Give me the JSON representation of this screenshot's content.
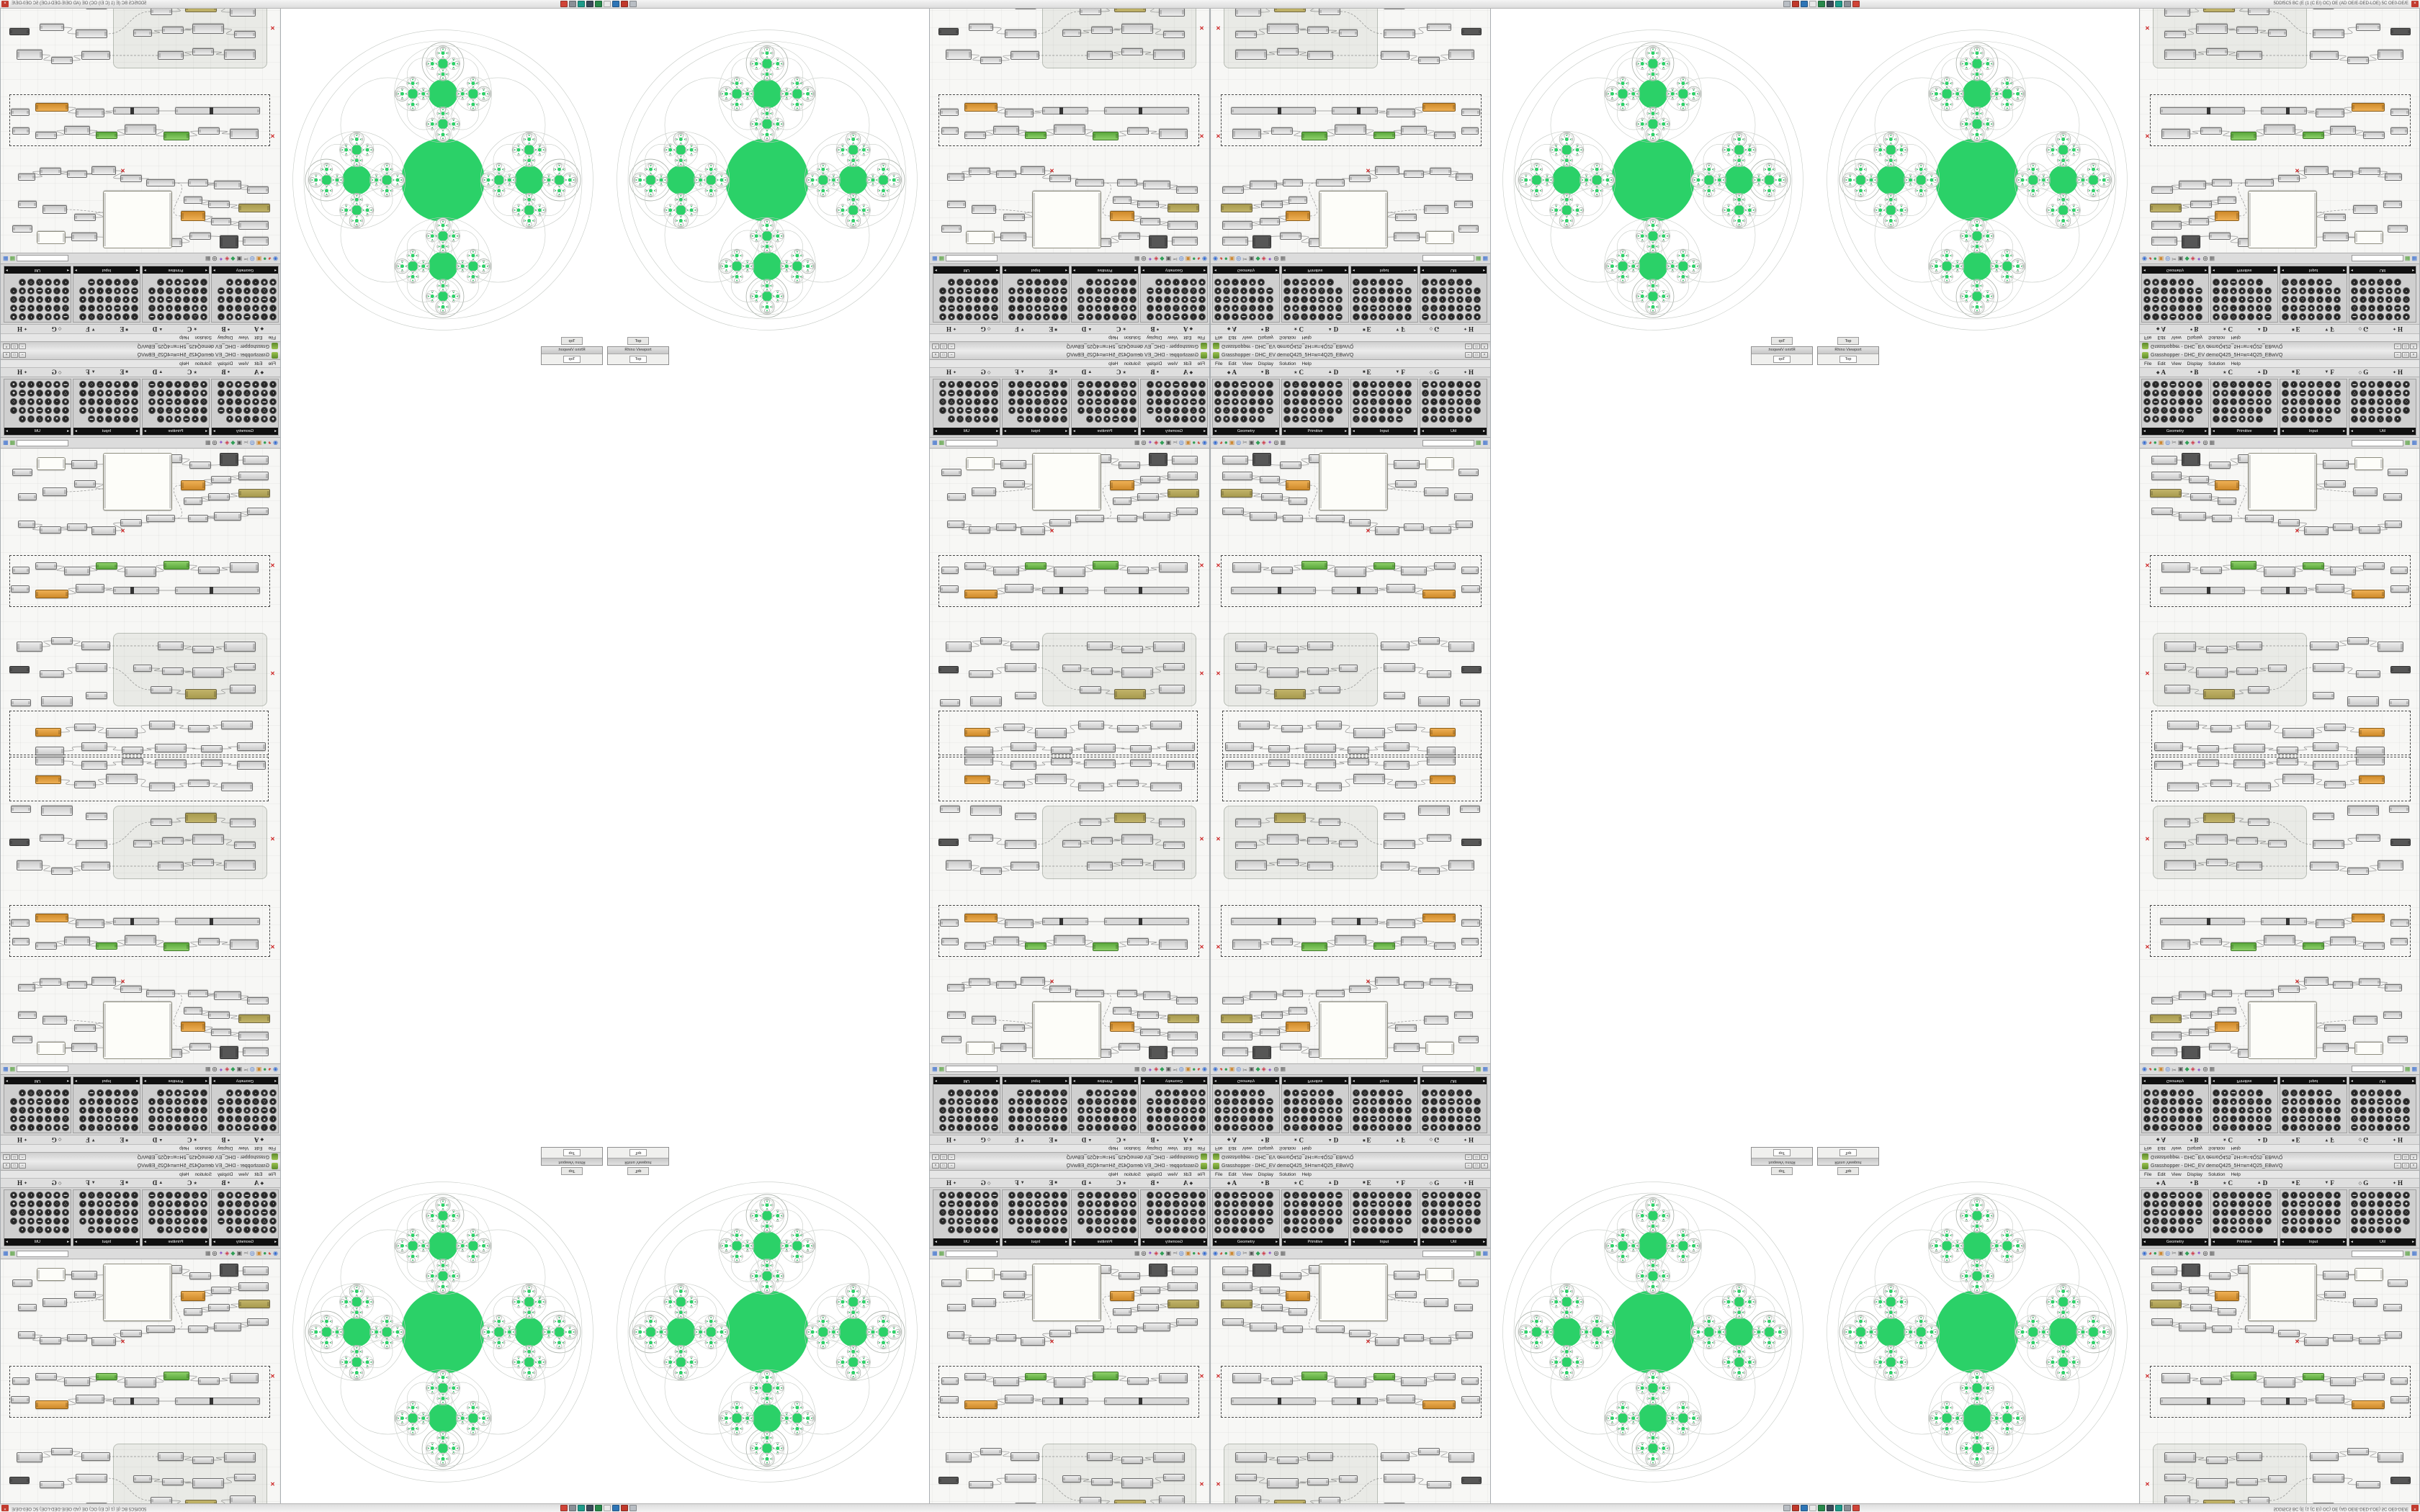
{
  "app": {
    "title_text": "5DDf5C5 BC (E (1 (C E/) OC) OE (AD OE/E-DED-LOE) 5C OE0-DE/E",
    "close_glyph": "×",
    "strip_icons": [
      {
        "name": "rhino-app-icon",
        "color": "#b9bec4"
      },
      {
        "name": "panel-red-icon",
        "color": "#c0392b"
      },
      {
        "name": "panel-blue-icon",
        "color": "#2e75b6"
      },
      {
        "name": "panel-white-icon",
        "color": "#e8e8e8"
      },
      {
        "name": "panel-green-icon",
        "color": "#27884a"
      },
      {
        "name": "panel-navy-icon",
        "color": "#3b4a5a"
      },
      {
        "name": "panel-teal-icon",
        "color": "#1e9b8a"
      },
      {
        "name": "panel-gray-icon",
        "color": "#8a9097"
      },
      {
        "name": "panel-red2-icon",
        "color": "#d04438"
      }
    ]
  },
  "editor": {
    "window_title": "Grasshopper - DHC_EV demoQ425_5H=w=4Q25_EBwVQ",
    "window_buttons": [
      "−",
      "□",
      "×"
    ],
    "menu": [
      "File",
      "Edit",
      "View",
      "Display",
      "Solution",
      "Help"
    ],
    "letter_tabs": [
      {
        "icon": "◆",
        "letter": "A"
      },
      {
        "icon": "●",
        "letter": "B"
      },
      {
        "icon": "★",
        "letter": "C"
      },
      {
        "icon": "▲",
        "letter": "D"
      },
      {
        "icon": "■",
        "letter": "E"
      },
      {
        "icon": "▼",
        "letter": "F"
      },
      {
        "icon": "◇",
        "letter": "G"
      },
      {
        "icon": "✦",
        "letter": "H"
      }
    ],
    "icon_glyphs": [
      "●",
      "◐",
      "▲",
      "■",
      "◆",
      "◇",
      "▪",
      "○",
      "✖",
      "▬",
      "△",
      "◉"
    ],
    "ribbon_panels": [
      {
        "caption": "Geometry",
        "icon_count": 34
      },
      {
        "caption": "Primitive",
        "icon_count": 34
      },
      {
        "caption": "Input",
        "icon_count": 34
      },
      {
        "caption": "Util",
        "icon_count": 34
      }
    ],
    "toolbar": {
      "search_placeholder": "",
      "left_icons": [
        {
          "name": "compass-icon",
          "glyph": "◉",
          "color": "#3a6fd0"
        },
        {
          "name": "pie-icon",
          "glyph": "◕",
          "color": "#cc4433"
        },
        {
          "name": "sphere-icon",
          "glyph": "●",
          "color": "#2f9e55"
        },
        {
          "name": "box-icon",
          "glyph": "▣",
          "color": "#cc8833"
        },
        {
          "name": "eye-icon",
          "glyph": "◎",
          "color": "#3a6fd0"
        },
        {
          "name": "scissors-icon",
          "glyph": "✂",
          "color": "#777777"
        },
        {
          "name": "camera-icon",
          "glyph": "▣",
          "color": "#555555"
        },
        {
          "name": "bucket-icon",
          "glyph": "◆",
          "color": "#2f9e55"
        },
        {
          "name": "magnet-icon",
          "glyph": "◈",
          "color": "#cc3344"
        },
        {
          "name": "wand-icon",
          "glyph": "✦",
          "color": "#8a55cc"
        },
        {
          "name": "target-icon",
          "glyph": "◎",
          "color": "#222222"
        },
        {
          "name": "chip-icon",
          "glyph": "▦",
          "color": "#666666"
        }
      ],
      "right_icons": [
        {
          "name": "grid-green-icon",
          "glyph": "▦",
          "color": "#57a33e"
        },
        {
          "name": "grid-blue-icon",
          "glyph": "▦",
          "color": "#3a6fd0"
        }
      ]
    },
    "canvas": {
      "groups": [
        [
          18,
          256,
          212,
          100
        ]
      ],
      "marquees": [
        [
          14,
          148,
          362,
          72
        ],
        [
          16,
          364,
          360,
          62
        ]
      ],
      "nodes": [
        [
          16,
          10,
          36,
          12,
          0
        ],
        [
          58,
          6,
          26,
          18,
          1
        ],
        [
          96,
          18,
          30,
          10,
          0
        ],
        [
          136,
          8,
          34,
          12,
          0
        ],
        [
          150,
          6,
          96,
          80,
          4
        ],
        [
          254,
          16,
          36,
          12,
          0
        ],
        [
          298,
          12,
          40,
          18,
          4
        ],
        [
          344,
          28,
          28,
          10,
          0
        ],
        [
          16,
          32,
          42,
          12,
          0
        ],
        [
          68,
          38,
          28,
          10,
          0
        ],
        [
          104,
          44,
          34,
          14,
          2
        ],
        [
          256,
          44,
          30,
          10,
          0
        ],
        [
          296,
          54,
          34,
          12,
          0
        ],
        [
          338,
          62,
          26,
          10,
          0
        ],
        [
          14,
          56,
          44,
          12,
          3
        ],
        [
          70,
          62,
          30,
          10,
          0
        ],
        [
          108,
          68,
          26,
          10,
          0
        ],
        [
          16,
          82,
          30,
          10,
          0
        ],
        [
          54,
          88,
          38,
          12,
          0
        ],
        [
          100,
          92,
          28,
          10,
          0
        ],
        [
          146,
          92,
          40,
          10,
          0
        ],
        [
          192,
          98,
          30,
          10,
          0
        ],
        [
          228,
          108,
          34,
          12,
          0
        ],
        [
          268,
          104,
          28,
          10,
          0
        ],
        [
          304,
          108,
          30,
          10,
          0
        ],
        [
          340,
          100,
          24,
          10,
          0
        ],
        [
          30,
          158,
          40,
          14,
          0
        ],
        [
          84,
          164,
          30,
          10,
          0
        ],
        [
          126,
          156,
          36,
          12,
          6
        ],
        [
          172,
          164,
          44,
          14,
          0
        ],
        [
          226,
          158,
          30,
          10,
          6
        ],
        [
          264,
          164,
          36,
          12,
          0
        ],
        [
          310,
          158,
          30,
          10,
          0
        ],
        [
          348,
          164,
          24,
          10,
          0
        ],
        [
          28,
          192,
          118,
          10,
          5
        ],
        [
          168,
          192,
          64,
          10,
          5
        ],
        [
          244,
          188,
          40,
          12,
          0
        ],
        [
          294,
          196,
          46,
          12,
          2
        ],
        [
          348,
          190,
          26,
          10,
          0
        ],
        [
          34,
          268,
          44,
          14,
          0
        ],
        [
          92,
          274,
          30,
          10,
          0
        ],
        [
          134,
          268,
          36,
          12,
          0
        ],
        [
          34,
          298,
          30,
          10,
          0
        ],
        [
          78,
          304,
          44,
          14,
          0
        ],
        [
          134,
          304,
          30,
          10,
          0
        ],
        [
          178,
          300,
          26,
          10,
          0
        ],
        [
          34,
          328,
          36,
          12,
          0
        ],
        [
          88,
          334,
          44,
          14,
          3
        ],
        [
          150,
          330,
          30,
          10,
          0
        ],
        [
          236,
          268,
          40,
          12,
          0
        ],
        [
          288,
          262,
          30,
          10,
          0
        ],
        [
          330,
          268,
          36,
          14,
          0
        ],
        [
          240,
          298,
          44,
          12,
          0
        ],
        [
          300,
          308,
          34,
          10,
          0
        ],
        [
          348,
          302,
          28,
          10,
          1
        ],
        [
          240,
          338,
          30,
          10,
          0
        ],
        [
          288,
          344,
          44,
          14,
          0
        ],
        [
          346,
          348,
          28,
          10,
          0
        ],
        [
          38,
          378,
          44,
          12,
          0
        ],
        [
          98,
          384,
          30,
          10,
          0
        ],
        [
          146,
          378,
          36,
          12,
          0
        ],
        [
          198,
          388,
          44,
          14,
          0
        ],
        [
          256,
          382,
          30,
          10,
          0
        ],
        [
          304,
          388,
          36,
          12,
          2
        ],
        [
          20,
          408,
          40,
          12,
          0
        ],
        [
          80,
          412,
          30,
          10,
          0
        ],
        [
          130,
          410,
          44,
          12,
          0
        ],
        [
          190,
          414,
          30,
          10,
          0
        ],
        [
          240,
          408,
          36,
          12,
          0
        ],
        [
          300,
          414,
          40,
          12,
          0
        ],
        [
          6,
          158,
          9,
          9,
          7
        ],
        [
          6,
          308,
          9,
          9,
          7
        ],
        [
          214,
          110,
          9,
          9,
          7
        ]
      ],
      "wires": [
        [
          52,
          16,
          96,
          23,
          0
        ],
        [
          126,
          23,
          136,
          14,
          0
        ],
        [
          170,
          14,
          254,
          22,
          0
        ],
        [
          290,
          22,
          298,
          21,
          0
        ],
        [
          58,
          38,
          68,
          43,
          0
        ],
        [
          96,
          43,
          104,
          51,
          0
        ],
        [
          138,
          51,
          146,
          97,
          1
        ],
        [
          58,
          62,
          70,
          67,
          0
        ],
        [
          100,
          67,
          108,
          73,
          0
        ],
        [
          46,
          88,
          54,
          94,
          0
        ],
        [
          92,
          94,
          100,
          97,
          0
        ],
        [
          128,
          97,
          146,
          97,
          0
        ],
        [
          186,
          103,
          192,
          103,
          0
        ],
        [
          222,
          103,
          228,
          114,
          0
        ],
        [
          262,
          110,
          268,
          109,
          0
        ],
        [
          296,
          109,
          304,
          113,
          0
        ],
        [
          334,
          113,
          340,
          105,
          0
        ],
        [
          70,
          165,
          84,
          169,
          0
        ],
        [
          114,
          169,
          126,
          162,
          0
        ],
        [
          162,
          162,
          172,
          171,
          0
        ],
        [
          216,
          171,
          226,
          163,
          0
        ],
        [
          256,
          163,
          264,
          170,
          0
        ],
        [
          300,
          170,
          310,
          163,
          0
        ],
        [
          146,
          197,
          168,
          197,
          0
        ],
        [
          232,
          197,
          244,
          194,
          0
        ],
        [
          284,
          194,
          294,
          202,
          0
        ],
        [
          78,
          275,
          92,
          279,
          0
        ],
        [
          122,
          279,
          134,
          274,
          0
        ],
        [
          170,
          274,
          236,
          274,
          1
        ],
        [
          276,
          274,
          288,
          267,
          0
        ],
        [
          318,
          267,
          330,
          275,
          0
        ],
        [
          64,
          303,
          78,
          311,
          0
        ],
        [
          122,
          311,
          134,
          309,
          0
        ],
        [
          164,
          309,
          178,
          305,
          0
        ],
        [
          70,
          334,
          88,
          341,
          0
        ],
        [
          132,
          341,
          150,
          335,
          0
        ],
        [
          180,
          335,
          240,
          304,
          1
        ],
        [
          284,
          304,
          300,
          313,
          0
        ],
        [
          82,
          384,
          98,
          389,
          0
        ],
        [
          128,
          389,
          146,
          384,
          0
        ],
        [
          182,
          384,
          198,
          395,
          0
        ],
        [
          242,
          395,
          256,
          387,
          0
        ],
        [
          286,
          387,
          304,
          394,
          0
        ],
        [
          60,
          414,
          80,
          417,
          0
        ],
        [
          110,
          417,
          130,
          416,
          0
        ],
        [
          174,
          416,
          190,
          419,
          0
        ],
        [
          220,
          419,
          240,
          414,
          0
        ],
        [
          276,
          414,
          300,
          420,
          0
        ],
        [
          150,
          46,
          296,
          60,
          1
        ],
        [
          246,
          56,
          256,
          49,
          0
        ]
      ]
    }
  },
  "viewport": {
    "mini_tab": "Top",
    "panel_title": "Rhino Viewport",
    "panel_tab": "Top"
  },
  "fractal": {
    "radius": 193,
    "outer_ring_ratio": 1.08,
    "disc_ratio": 0.3,
    "sub_ratio": 0.35,
    "sub_dist": 0.62,
    "rim_circle_ratio": 0.15,
    "rim_circle_dist": 0.84,
    "petal_ratio": 0.34,
    "petal_dist": 0.56,
    "lace": [
      [
        0.4,
        0.05
      ],
      [
        0.5,
        0.065
      ]
    ],
    "depth": 4,
    "green": "#2bd168",
    "guide_stroke": "#c6cbc6",
    "white_stroke": "#a9b0a9",
    "centers": [
      [
        225,
        238
      ],
      [
        675,
        238
      ]
    ]
  }
}
